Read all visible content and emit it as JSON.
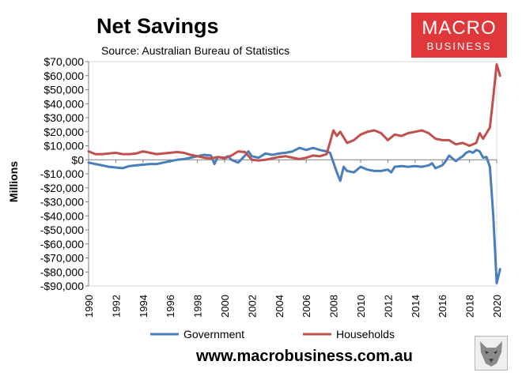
{
  "header": {
    "title": "Net Savings",
    "subtitle": "Source: Australian Bureau of Statistics"
  },
  "logo": {
    "line1": "MACRO",
    "line2": "BUSINESS"
  },
  "footer": {
    "url": "www.macrobusiness.com.au"
  },
  "colors": {
    "government": "#4a7ebb",
    "households": "#c0504d",
    "logo": "#e0383a"
  },
  "chart_data": {
    "type": "line",
    "title": "Net Savings",
    "ylabel": "Millions",
    "xlabel": "",
    "ylim": [
      -90000,
      70000
    ],
    "xlim": [
      1990,
      2020
    ],
    "y_ticks": [
      70000,
      60000,
      50000,
      40000,
      30000,
      20000,
      10000,
      0,
      -10000,
      -20000,
      -30000,
      -40000,
      -50000,
      -60000,
      -70000,
      -80000,
      -90000
    ],
    "y_tick_labels": [
      "$70,000",
      "$60,000",
      "$50,000",
      "$40,000",
      "$30,000",
      "$20,000",
      "$10,000",
      "$0",
      "-$10,000",
      "-$20,000",
      "-$30,000",
      "-$40,000",
      "-$50,000",
      "-$60,000",
      "-$70,000",
      "-$80,000",
      "-$90,000"
    ],
    "x_ticks": [
      1990,
      1992,
      1994,
      1996,
      1998,
      2000,
      2002,
      2004,
      2006,
      2008,
      2010,
      2012,
      2014,
      2016,
      2018,
      2020
    ],
    "x_tick_labels": [
      "1990",
      "1992",
      "1994",
      "1996",
      "1998",
      "2000",
      "2002",
      "2004",
      "2006",
      "2008",
      "2010",
      "2012",
      "2014",
      "2016",
      "2018",
      "2020"
    ],
    "grid": false,
    "legend_position": "bottom",
    "series": [
      {
        "name": "Government",
        "points": [
          [
            1990,
            -2000
          ],
          [
            1990.5,
            -3000
          ],
          [
            1991,
            -4000
          ],
          [
            1991.5,
            -5000
          ],
          [
            1992,
            -5500
          ],
          [
            1992.5,
            -6000
          ],
          [
            1993,
            -4500
          ],
          [
            1993.5,
            -4000
          ],
          [
            1994,
            -3500
          ],
          [
            1994.5,
            -3000
          ],
          [
            1995,
            -3000
          ],
          [
            1995.5,
            -2000
          ],
          [
            1996,
            -1000
          ],
          [
            1996.5,
            0
          ],
          [
            1997,
            500
          ],
          [
            1997.5,
            1500
          ],
          [
            1998,
            2500
          ],
          [
            1998.5,
            3500
          ],
          [
            1999,
            3000
          ],
          [
            1999.25,
            -3000
          ],
          [
            1999.5,
            2000
          ],
          [
            2000,
            1500
          ],
          [
            2000.25,
            2500
          ],
          [
            2000.5,
            0
          ],
          [
            2001,
            -2000
          ],
          [
            2001.5,
            3000
          ],
          [
            2001.75,
            6000
          ],
          [
            2002,
            2500
          ],
          [
            2002.5,
            1500
          ],
          [
            2003,
            4500
          ],
          [
            2003.5,
            3500
          ],
          [
            2004,
            4500
          ],
          [
            2004.5,
            5000
          ],
          [
            2005,
            6000
          ],
          [
            2005.5,
            8500
          ],
          [
            2006,
            7000
          ],
          [
            2006.5,
            8500
          ],
          [
            2007,
            7000
          ],
          [
            2007.5,
            6000
          ],
          [
            2007.75,
            5000
          ],
          [
            2008,
            -2000
          ],
          [
            2008.25,
            -9000
          ],
          [
            2008.5,
            -15000
          ],
          [
            2008.75,
            -5000
          ],
          [
            2009,
            -8000
          ],
          [
            2009.5,
            -9000
          ],
          [
            2010,
            -5000
          ],
          [
            2010.5,
            -7000
          ],
          [
            2011,
            -8000
          ],
          [
            2011.5,
            -8000
          ],
          [
            2012,
            -7000
          ],
          [
            2012.25,
            -9000
          ],
          [
            2012.5,
            -5000
          ],
          [
            2013,
            -4500
          ],
          [
            2013.5,
            -5000
          ],
          [
            2014,
            -4500
          ],
          [
            2014.5,
            -5000
          ],
          [
            2015,
            -4000
          ],
          [
            2015.25,
            -2500
          ],
          [
            2015.5,
            -6000
          ],
          [
            2016,
            -4000
          ],
          [
            2016.25,
            -1000
          ],
          [
            2016.5,
            3000
          ],
          [
            2016.75,
            1000
          ],
          [
            2017,
            -1000
          ],
          [
            2017.25,
            1000
          ],
          [
            2017.5,
            2500
          ],
          [
            2017.75,
            5000
          ],
          [
            2018,
            6000
          ],
          [
            2018.25,
            5000
          ],
          [
            2018.5,
            7000
          ],
          [
            2018.75,
            6000
          ],
          [
            2019,
            1500
          ],
          [
            2019.25,
            2000
          ],
          [
            2019.5,
            -5000
          ],
          [
            2019.75,
            -40000
          ],
          [
            2020,
            -88000
          ],
          [
            2020.25,
            -78000
          ]
        ]
      },
      {
        "name": "Households",
        "points": [
          [
            1990,
            6000
          ],
          [
            1990.5,
            4000
          ],
          [
            1991,
            4000
          ],
          [
            1991.5,
            4500
          ],
          [
            1992,
            5000
          ],
          [
            1992.5,
            4000
          ],
          [
            1993,
            4000
          ],
          [
            1993.5,
            4500
          ],
          [
            1994,
            6000
          ],
          [
            1994.5,
            5000
          ],
          [
            1995,
            4000
          ],
          [
            1995.5,
            4500
          ],
          [
            1996,
            5000
          ],
          [
            1996.5,
            5500
          ],
          [
            1997,
            5000
          ],
          [
            1997.5,
            3500
          ],
          [
            1998,
            2500
          ],
          [
            1998.5,
            1500
          ],
          [
            1999,
            1000
          ],
          [
            1999.5,
            2000
          ],
          [
            2000,
            1000
          ],
          [
            2000.5,
            3000
          ],
          [
            2001,
            6000
          ],
          [
            2001.5,
            5500
          ],
          [
            2002,
            0
          ],
          [
            2002.5,
            -500
          ],
          [
            2003,
            0
          ],
          [
            2003.5,
            1000
          ],
          [
            2004,
            2000
          ],
          [
            2004.5,
            2500
          ],
          [
            2005,
            1500
          ],
          [
            2005.5,
            500
          ],
          [
            2006,
            1500
          ],
          [
            2006.5,
            3000
          ],
          [
            2007,
            2500
          ],
          [
            2007.5,
            4000
          ],
          [
            2008,
            21000
          ],
          [
            2008.25,
            17000
          ],
          [
            2008.5,
            20000
          ],
          [
            2009,
            12000
          ],
          [
            2009.5,
            14000
          ],
          [
            2010,
            18000
          ],
          [
            2010.5,
            20000
          ],
          [
            2011,
            21000
          ],
          [
            2011.5,
            19000
          ],
          [
            2012,
            14000
          ],
          [
            2012.5,
            18000
          ],
          [
            2013,
            17000
          ],
          [
            2013.5,
            19000
          ],
          [
            2014,
            20000
          ],
          [
            2014.5,
            21000
          ],
          [
            2015,
            19000
          ],
          [
            2015.5,
            15000
          ],
          [
            2016,
            14000
          ],
          [
            2016.5,
            14000
          ],
          [
            2017,
            11000
          ],
          [
            2017.5,
            12000
          ],
          [
            2018,
            10000
          ],
          [
            2018.5,
            12000
          ],
          [
            2018.75,
            19000
          ],
          [
            2019,
            15000
          ],
          [
            2019.5,
            23000
          ],
          [
            2019.75,
            45000
          ],
          [
            2020,
            68000
          ],
          [
            2020.25,
            60000
          ]
        ]
      }
    ]
  }
}
